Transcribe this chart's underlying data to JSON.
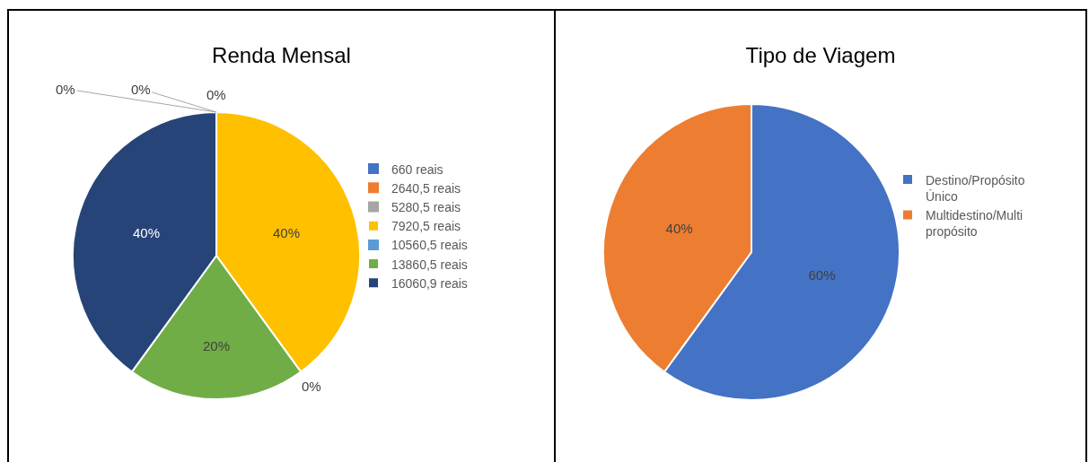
{
  "chart_data": [
    {
      "type": "pie",
      "title": "Renda Mensal",
      "categories": [
        "660 reais",
        "2640,5 reais",
        "5280,5 reais",
        "7920,5 reais",
        "10560,5 reais",
        "13860,5 reais",
        "16060,9 reais"
      ],
      "values": [
        0,
        0,
        0,
        40,
        0,
        20,
        40
      ],
      "colors": [
        "#4472c4",
        "#ed7d31",
        "#a5a5a5",
        "#ffc000",
        "#5b9bd5",
        "#70ad47",
        "#264478"
      ],
      "value_labels": [
        "0%",
        "0%",
        "0%",
        "40%",
        "0%",
        "20%",
        "40%"
      ],
      "legend": "right"
    },
    {
      "type": "pie",
      "title": "Tipo de Viagem",
      "categories": [
        "Destino/Propósito Único",
        "Multidestino/Multi propósito"
      ],
      "values": [
        60,
        40
      ],
      "colors": [
        "#4472c4",
        "#ed7d31"
      ],
      "value_labels": [
        "60%",
        "40%"
      ],
      "legend": "right"
    }
  ]
}
